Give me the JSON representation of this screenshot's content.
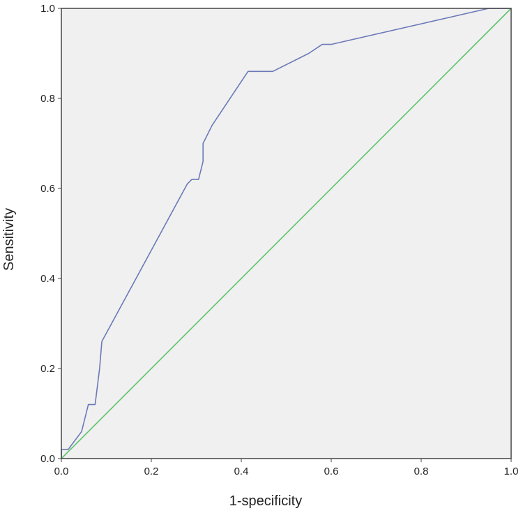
{
  "chart_data": {
    "type": "line",
    "title": "",
    "xlabel": "1-specificity",
    "ylabel": "Sensitivity",
    "xlim": [
      0,
      1
    ],
    "ylim": [
      0,
      1
    ],
    "x_ticks": [
      "0.0",
      "0.2",
      "0.4",
      "0.6",
      "0.8",
      "1.0"
    ],
    "y_ticks": [
      "0.0",
      "0.2",
      "0.4",
      "0.6",
      "0.8",
      "1.0"
    ],
    "grid": false,
    "legend": "none",
    "plot_background": "#f0f0f0",
    "series": [
      {
        "color": "#6b79b8",
        "x": [
          0.0,
          0.0,
          0.015,
          0.045,
          0.06,
          0.075,
          0.085,
          0.09,
          0.28,
          0.29,
          0.305,
          0.315,
          0.315,
          0.335,
          0.415,
          0.47,
          0.55,
          0.58,
          0.6,
          0.95,
          1.0
        ],
        "y": [
          0.0,
          0.02,
          0.02,
          0.06,
          0.12,
          0.12,
          0.2,
          0.26,
          0.61,
          0.62,
          0.62,
          0.66,
          0.7,
          0.74,
          0.86,
          0.86,
          0.9,
          0.92,
          0.92,
          1.0,
          1.0
        ]
      },
      {
        "color": "#5cc46a",
        "x": [
          0.0,
          1.0
        ],
        "y": [
          0.0,
          1.0
        ]
      }
    ]
  }
}
